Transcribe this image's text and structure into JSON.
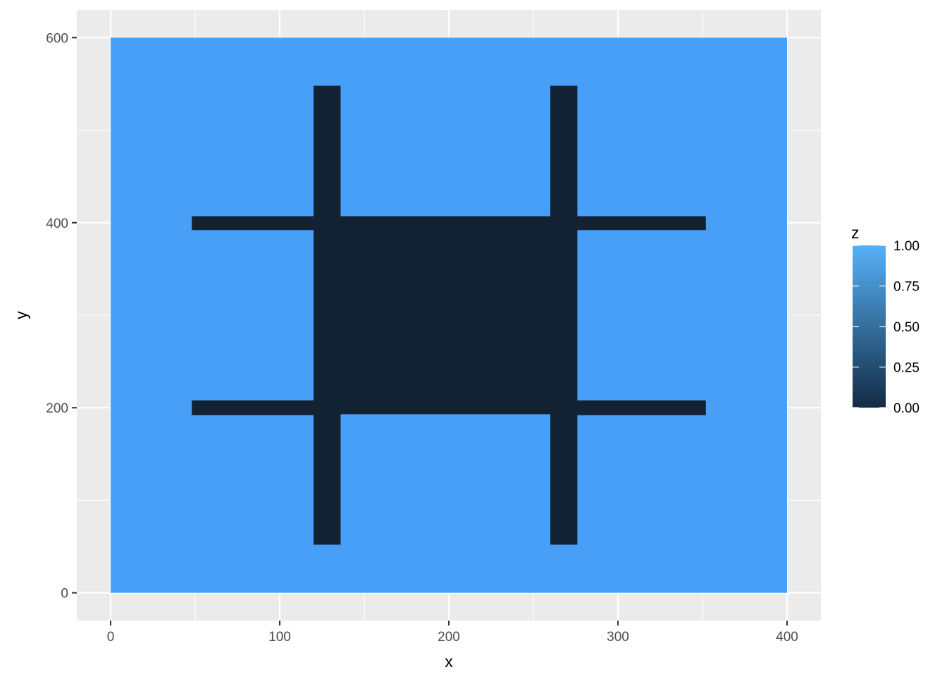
{
  "chart_data": {
    "type": "heatmap",
    "title": "",
    "xlabel": "x",
    "ylabel": "y",
    "xlim": [
      -20,
      420
    ],
    "ylim": [
      -30,
      630
    ],
    "x_ticks": [
      0,
      100,
      200,
      300,
      400
    ],
    "y_ticks": [
      0,
      200,
      400,
      600
    ],
    "grid": true,
    "background": {
      "x": [
        0,
        400
      ],
      "y": [
        0,
        600
      ],
      "z": 1
    },
    "regions": [
      {
        "name": "center-block",
        "x": [
          120,
          275
        ],
        "y": [
          193,
          407
        ],
        "z": 0
      },
      {
        "name": "left-vertical-bar",
        "x": [
          120,
          136
        ],
        "y": [
          52,
          548
        ],
        "z": 0
      },
      {
        "name": "right-vertical-bar",
        "x": [
          260,
          276
        ],
        "y": [
          52,
          548
        ],
        "z": 0
      },
      {
        "name": "top-left-arm",
        "x": [
          48,
          120
        ],
        "y": [
          392,
          407
        ],
        "z": 0
      },
      {
        "name": "top-right-arm",
        "x": [
          275,
          352
        ],
        "y": [
          392,
          407
        ],
        "z": 0
      },
      {
        "name": "bottom-left-arm",
        "x": [
          48,
          120
        ],
        "y": [
          192,
          208
        ],
        "z": 0
      },
      {
        "name": "bottom-right-arm",
        "x": [
          275,
          352
        ],
        "y": [
          192,
          208
        ],
        "z": 0
      }
    ],
    "legend": {
      "title": "z",
      "position": "right",
      "breaks": [
        0.0,
        0.25,
        0.5,
        0.75,
        1.0
      ],
      "labels": [
        "0.00",
        "0.25",
        "0.50",
        "0.75",
        "1.00"
      ],
      "low_color": "#132B43",
      "high_color": "#56B1F7"
    },
    "colors": {
      "panel_background": "#EBEBEB",
      "grid": "#FFFFFF",
      "z_0": "#132233",
      "z_1": "#479FF8"
    }
  }
}
